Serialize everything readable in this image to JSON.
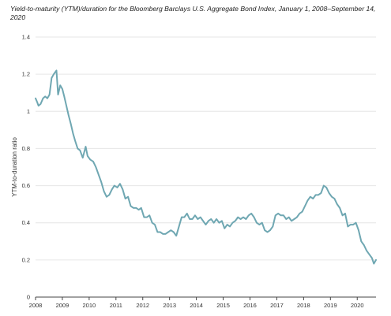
{
  "chart_data": {
    "type": "line",
    "title": "Yield-to-maturity (YTM)/duration for the Bloomberg Barclays U.S. Aggregate Bond Index, January 1, 2008–September 14, 2020",
    "xlabel": "",
    "ylabel": "YTM-to-duration ratio",
    "xlim": [
      2008,
      2020.7
    ],
    "ylim": [
      0,
      1.4
    ],
    "x_ticks": [
      "2008",
      "2009",
      "2010",
      "2011",
      "2012",
      "2013",
      "2014",
      "2015",
      "2016",
      "2017",
      "2018",
      "2019",
      "2020"
    ],
    "y_ticks": [
      "0",
      "0.2",
      "0.4",
      "0.6",
      "0.8",
      "1",
      "1.2",
      "1.4"
    ],
    "grid": true,
    "line_color": "#6fa7b2",
    "series": [
      {
        "x": [
          2008.0,
          2008.06,
          2008.11,
          2008.19,
          2008.28,
          2008.36,
          2008.44,
          2008.52,
          2008.6,
          2008.68,
          2008.78,
          2008.84,
          2008.92,
          2009.0,
          2009.07,
          2009.15,
          2009.23,
          2009.32,
          2009.4,
          2009.48,
          2009.57,
          2009.66,
          2009.76,
          2009.87,
          2009.94,
          2010.04,
          2010.15,
          2010.25,
          2010.35,
          2010.45,
          2010.55,
          2010.65,
          2010.75,
          2010.85,
          2010.94,
          2011.05,
          2011.15,
          2011.25,
          2011.35,
          2011.45,
          2011.55,
          2011.65,
          2011.75,
          2011.85,
          2011.94,
          2012.05,
          2012.15,
          2012.25,
          2012.35,
          2012.45,
          2012.55,
          2012.65,
          2012.75,
          2012.85,
          2012.95,
          2013.05,
          2013.15,
          2013.25,
          2013.35,
          2013.45,
          2013.55,
          2013.65,
          2013.75,
          2013.85,
          2013.95,
          2014.05,
          2014.15,
          2014.25,
          2014.35,
          2014.45,
          2014.55,
          2014.65,
          2014.75,
          2014.85,
          2014.95,
          2015.05,
          2015.15,
          2015.25,
          2015.35,
          2015.45,
          2015.55,
          2015.65,
          2015.75,
          2015.85,
          2015.95,
          2016.05,
          2016.15,
          2016.25,
          2016.35,
          2016.45,
          2016.55,
          2016.65,
          2016.75,
          2016.85,
          2016.95,
          2017.05,
          2017.15,
          2017.25,
          2017.35,
          2017.45,
          2017.55,
          2017.65,
          2017.75,
          2017.85,
          2017.95,
          2018.05,
          2018.15,
          2018.25,
          2018.35,
          2018.45,
          2018.55,
          2018.65,
          2018.75,
          2018.85,
          2018.95,
          2019.05,
          2019.15,
          2019.25,
          2019.35,
          2019.45,
          2019.55,
          2019.65,
          2019.75,
          2019.85,
          2019.95,
          2020.05,
          2020.15,
          2020.25,
          2020.35,
          2020.45,
          2020.55,
          2020.62,
          2020.7
        ],
        "y": [
          1.07,
          1.05,
          1.03,
          1.04,
          1.07,
          1.08,
          1.07,
          1.09,
          1.18,
          1.2,
          1.22,
          1.09,
          1.14,
          1.12,
          1.08,
          1.03,
          0.98,
          0.93,
          0.88,
          0.84,
          0.8,
          0.79,
          0.75,
          0.81,
          0.76,
          0.74,
          0.73,
          0.7,
          0.66,
          0.62,
          0.57,
          0.54,
          0.55,
          0.58,
          0.6,
          0.59,
          0.61,
          0.58,
          0.53,
          0.54,
          0.49,
          0.48,
          0.48,
          0.47,
          0.48,
          0.43,
          0.43,
          0.44,
          0.4,
          0.39,
          0.35,
          0.35,
          0.34,
          0.34,
          0.35,
          0.36,
          0.35,
          0.33,
          0.38,
          0.43,
          0.43,
          0.45,
          0.42,
          0.42,
          0.44,
          0.42,
          0.43,
          0.41,
          0.39,
          0.41,
          0.42,
          0.4,
          0.42,
          0.4,
          0.41,
          0.37,
          0.39,
          0.38,
          0.4,
          0.41,
          0.43,
          0.42,
          0.43,
          0.42,
          0.44,
          0.45,
          0.43,
          0.4,
          0.39,
          0.4,
          0.36,
          0.35,
          0.36,
          0.38,
          0.44,
          0.45,
          0.44,
          0.44,
          0.42,
          0.43,
          0.41,
          0.42,
          0.43,
          0.45,
          0.46,
          0.49,
          0.52,
          0.54,
          0.53,
          0.55,
          0.55,
          0.56,
          0.6,
          0.59,
          0.56,
          0.54,
          0.53,
          0.5,
          0.48,
          0.44,
          0.45,
          0.38,
          0.39,
          0.39,
          0.4,
          0.36,
          0.3,
          0.28,
          0.25,
          0.23,
          0.21,
          0.18,
          0.2
        ]
      }
    ]
  }
}
